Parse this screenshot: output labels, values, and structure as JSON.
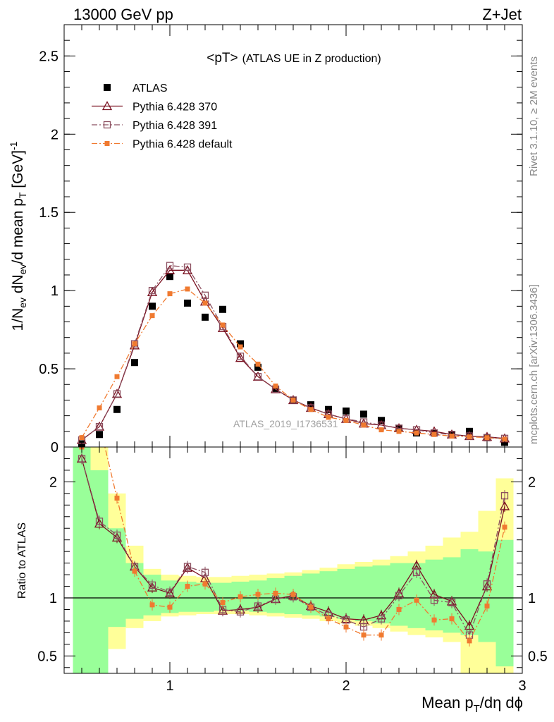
{
  "header": {
    "energy_label": "13000 GeV pp",
    "process_label": "Z+Jet"
  },
  "side_labels": {
    "rivet": "Rivet 3.1.10, ≥ 2M events",
    "mcplots": "mcplots.cern.ch [arXiv:1306.3436]"
  },
  "chart_data": [
    {
      "type": "scatter",
      "panel": "main",
      "title": "<pT>",
      "subtitle": "(ATLAS UE in Z production)",
      "watermark": "ATLAS_2019_I1736531",
      "ylabel": "1/N_ev dN_ev/d mean p_T [GeV]^-1",
      "xlim": [
        0.4,
        3.0
      ],
      "ylim": [
        0,
        2.7
      ],
      "yticks": [
        0,
        0.5,
        1,
        1.5,
        2,
        2.5
      ],
      "ytick_labels": [
        "0",
        "0.5",
        "1",
        "1.5",
        "2",
        "2.5"
      ],
      "x": [
        0.5,
        0.6,
        0.7,
        0.8,
        0.9,
        1.0,
        1.1,
        1.2,
        1.3,
        1.4,
        1.5,
        1.6,
        1.7,
        1.8,
        1.9,
        2.0,
        2.1,
        2.2,
        2.3,
        2.4,
        2.5,
        2.6,
        2.7,
        2.8,
        2.9
      ],
      "series": [
        {
          "name": "ATLAS",
          "color": "#000000",
          "marker": "filled-square",
          "values": [
            0.02,
            0.08,
            0.24,
            0.54,
            0.9,
            1.09,
            0.92,
            0.83,
            0.88,
            0.66,
            0.51,
            0.37,
            0.3,
            0.27,
            0.24,
            0.23,
            0.21,
            0.17,
            0.12,
            0.09,
            0.09,
            0.08,
            0.1,
            0.06,
            0.03
          ]
        },
        {
          "name": "Pythia 6.428 370",
          "color": "#7a1020",
          "marker": "open-triangle",
          "dash": "solid",
          "values": [
            0.045,
            0.13,
            0.34,
            0.65,
            0.99,
            1.13,
            1.13,
            0.93,
            0.76,
            0.57,
            0.45,
            0.37,
            0.3,
            0.25,
            0.21,
            0.18,
            0.15,
            0.14,
            0.12,
            0.11,
            0.1,
            0.08,
            0.07,
            0.065,
            0.055
          ]
        },
        {
          "name": "Pythia 6.428 391",
          "color": "#8c5060",
          "marker": "open-square",
          "dash": "dashdot",
          "values": [
            0.045,
            0.13,
            0.34,
            0.66,
            1.0,
            1.16,
            1.15,
            0.97,
            0.77,
            0.58,
            0.45,
            0.37,
            0.3,
            0.25,
            0.21,
            0.18,
            0.16,
            0.14,
            0.12,
            0.11,
            0.09,
            0.08,
            0.07,
            0.06,
            0.055
          ]
        },
        {
          "name": "Pythia 6.428 default",
          "color": "#f07a30",
          "marker": "filled-small-square",
          "dash": "dashdot",
          "values": [
            0.06,
            0.25,
            0.45,
            0.66,
            0.84,
            0.98,
            1.01,
            0.92,
            0.78,
            0.64,
            0.53,
            0.39,
            0.3,
            0.24,
            0.19,
            0.17,
            0.14,
            0.11,
            0.1,
            0.09,
            0.08,
            0.07,
            0.065,
            0.06,
            0.05
          ]
        }
      ],
      "legend": "top-left"
    },
    {
      "type": "line",
      "panel": "ratio",
      "ylabel": "Ratio to ATLAS",
      "xlabel": "Mean p_T/dη dϕ",
      "xlim": [
        0.4,
        3.0
      ],
      "ylim": [
        0.35,
        2.3
      ],
      "xticks": [
        1,
        2,
        3
      ],
      "xtick_labels": [
        "1",
        "2",
        "3"
      ],
      "yticks": [
        0.5,
        1,
        2
      ],
      "ytick_labels": [
        "0.5",
        "1",
        "2"
      ],
      "reference_line": 1,
      "x": [
        0.5,
        0.6,
        0.7,
        0.8,
        0.9,
        1.0,
        1.1,
        1.2,
        1.3,
        1.4,
        1.5,
        1.6,
        1.7,
        1.8,
        1.9,
        2.0,
        2.1,
        2.2,
        2.3,
        2.4,
        2.5,
        2.6,
        2.7,
        2.8,
        2.9
      ],
      "band_edges": [
        0.45,
        0.55,
        0.65,
        0.75,
        0.85,
        0.95,
        1.05,
        1.15,
        1.25,
        1.35,
        1.45,
        1.55,
        1.65,
        1.75,
        1.85,
        1.95,
        2.05,
        2.15,
        2.25,
        2.35,
        2.45,
        2.55,
        2.65,
        2.75,
        2.85,
        2.95
      ],
      "band_stat": [
        [
          0.35,
          2.3
        ],
        [
          0.35,
          2.1
        ],
        [
          0.75,
          1.6
        ],
        [
          0.82,
          1.3
        ],
        [
          0.85,
          1.2
        ],
        [
          0.87,
          1.15
        ],
        [
          0.88,
          1.14
        ],
        [
          0.88,
          1.13
        ],
        [
          0.89,
          1.13
        ],
        [
          0.89,
          1.14
        ],
        [
          0.88,
          1.15
        ],
        [
          0.87,
          1.17
        ],
        [
          0.86,
          1.19
        ],
        [
          0.85,
          1.21
        ],
        [
          0.84,
          1.23
        ],
        [
          0.82,
          1.25
        ],
        [
          0.8,
          1.27
        ],
        [
          0.78,
          1.28
        ],
        [
          0.76,
          1.3
        ],
        [
          0.74,
          1.3
        ],
        [
          0.72,
          1.33
        ],
        [
          0.7,
          1.35
        ],
        [
          0.68,
          1.42
        ],
        [
          0.62,
          1.4
        ],
        [
          0.41,
          1.5
        ]
      ],
      "band_syst": [
        [
          0.35,
          2.3
        ],
        [
          0.38,
          2.3
        ],
        [
          0.56,
          1.9
        ],
        [
          0.74,
          1.45
        ],
        [
          0.8,
          1.25
        ],
        [
          0.84,
          1.2
        ],
        [
          0.85,
          1.19
        ],
        [
          0.86,
          1.18
        ],
        [
          0.86,
          1.18
        ],
        [
          0.86,
          1.19
        ],
        [
          0.85,
          1.2
        ],
        [
          0.84,
          1.21
        ],
        [
          0.83,
          1.22
        ],
        [
          0.82,
          1.24
        ],
        [
          0.8,
          1.26
        ],
        [
          0.78,
          1.29
        ],
        [
          0.76,
          1.31
        ],
        [
          0.74,
          1.33
        ],
        [
          0.71,
          1.36
        ],
        [
          0.68,
          1.4
        ],
        [
          0.66,
          1.45
        ],
        [
          0.62,
          1.52
        ],
        [
          0.35,
          1.57
        ],
        [
          0.35,
          1.75
        ],
        [
          0.35,
          2.03
        ]
      ],
      "series": [
        {
          "name": "Pythia 6.428 370",
          "color": "#7a1020",
          "marker": "open-triangle",
          "dash": "solid",
          "values": [
            2.2,
            1.64,
            1.52,
            1.27,
            1.09,
            1.04,
            1.26,
            1.17,
            0.89,
            0.9,
            0.92,
            0.99,
            1.02,
            0.93,
            0.88,
            0.82,
            0.81,
            0.85,
            1.04,
            1.28,
            1.03,
            0.97,
            0.76,
            1.1,
            1.79
          ]
        },
        {
          "name": "Pythia 6.428 391",
          "color": "#8c5060",
          "marker": "open-square",
          "dash": "dashdot",
          "values": [
            2.2,
            1.66,
            1.54,
            1.27,
            1.11,
            1.05,
            1.27,
            1.22,
            0.9,
            0.88,
            0.93,
            0.99,
            1.01,
            0.92,
            0.85,
            0.81,
            0.75,
            0.82,
            1.02,
            1.22,
            0.98,
            0.96,
            0.68,
            1.12,
            1.88
          ]
        },
        {
          "name": "Pythia 6.428 default",
          "color": "#f07a30",
          "marker": "filled-small-square",
          "dash": "dashdot",
          "values": [
            2.3,
            2.5,
            1.86,
            1.23,
            0.94,
            0.92,
            1.1,
            1.12,
            0.96,
            1.01,
            1.03,
            1.04,
            1.03,
            0.92,
            0.82,
            0.75,
            0.68,
            0.68,
            0.9,
            0.98,
            0.81,
            0.82,
            0.63,
            0.93,
            1.61
          ]
        }
      ]
    }
  ]
}
